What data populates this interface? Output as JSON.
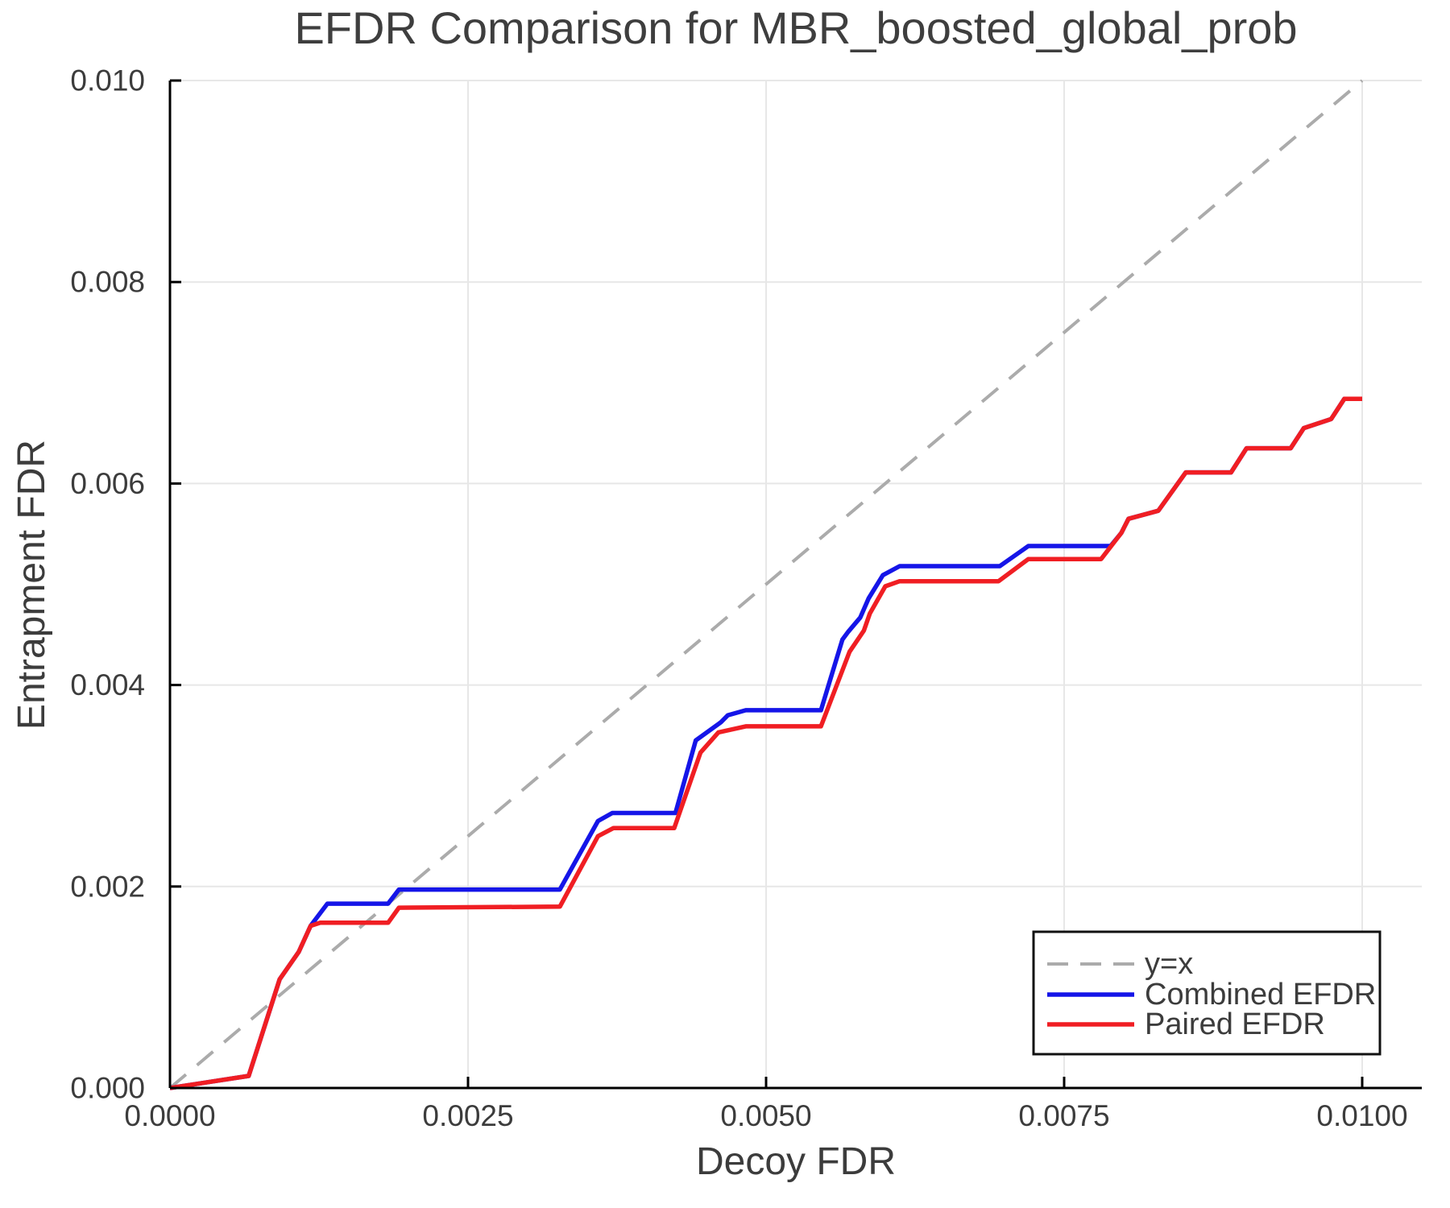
{
  "chart_data": {
    "type": "line",
    "title": "EFDR Comparison for MBR_boosted_global_prob",
    "xlabel": "Decoy FDR",
    "ylabel": "Entrapment FDR",
    "xlim": [
      0,
      0.0105
    ],
    "ylim": [
      0,
      0.01
    ],
    "grid": true,
    "legend_position": "bottom-right",
    "x_ticks": [
      {
        "value": 0.0,
        "label": "0.0000"
      },
      {
        "value": 0.0025,
        "label": "0.0025"
      },
      {
        "value": 0.005,
        "label": "0.0050"
      },
      {
        "value": 0.0075,
        "label": "0.0075"
      },
      {
        "value": 0.01,
        "label": "0.0100"
      }
    ],
    "y_ticks": [
      {
        "value": 0.0,
        "label": "0.000"
      },
      {
        "value": 0.002,
        "label": "0.002"
      },
      {
        "value": 0.004,
        "label": "0.004"
      },
      {
        "value": 0.006,
        "label": "0.006"
      },
      {
        "value": 0.008,
        "label": "0.008"
      },
      {
        "value": 0.01,
        "label": "0.010"
      }
    ],
    "series": [
      {
        "name": "y=x",
        "data_name": "y-equals-x-line",
        "color": "#ababab",
        "style": "dashed",
        "width": 4,
        "points": [
          [
            0.0,
            0.0
          ],
          [
            0.01,
            0.01
          ]
        ]
      },
      {
        "name": "Combined EFDR",
        "data_name": "combined-efdr-line",
        "color": "#1515e8",
        "style": "solid",
        "width": 5.5,
        "points": [
          [
            0.0,
            0.0
          ],
          [
            0.00066,
            0.00012
          ],
          [
            0.00092,
            0.00108
          ],
          [
            0.00108,
            0.00135
          ],
          [
            0.00118,
            0.00161
          ],
          [
            0.00132,
            0.00183
          ],
          [
            0.00183,
            0.00183
          ],
          [
            0.00192,
            0.00197
          ],
          [
            0.00327,
            0.00197
          ],
          [
            0.00359,
            0.00265
          ],
          [
            0.00371,
            0.00273
          ],
          [
            0.00424,
            0.00273
          ],
          [
            0.00441,
            0.00345
          ],
          [
            0.00462,
            0.00363
          ],
          [
            0.00468,
            0.0037
          ],
          [
            0.00483,
            0.00375
          ],
          [
            0.00546,
            0.00375
          ],
          [
            0.00564,
            0.00445
          ],
          [
            0.00569,
            0.00453
          ],
          [
            0.00579,
            0.00467
          ],
          [
            0.00586,
            0.00486
          ],
          [
            0.00598,
            0.00509
          ],
          [
            0.00612,
            0.00518
          ],
          [
            0.00696,
            0.00518
          ],
          [
            0.0072,
            0.00538
          ],
          [
            0.00789,
            0.00538
          ],
          [
            0.00798,
            0.00551
          ],
          [
            0.00804,
            0.00565
          ],
          [
            0.00829,
            0.00573
          ],
          [
            0.00852,
            0.00611
          ],
          [
            0.0089,
            0.00611
          ],
          [
            0.00903,
            0.00635
          ],
          [
            0.0094,
            0.00635
          ],
          [
            0.00951,
            0.00655
          ],
          [
            0.00974,
            0.00664
          ],
          [
            0.00985,
            0.00684
          ],
          [
            0.01,
            0.00684
          ]
        ]
      },
      {
        "name": "Paired EFDR",
        "data_name": "paired-efdr-line",
        "color": "#f01e23",
        "style": "solid",
        "width": 5.5,
        "points": [
          [
            0.0,
            0.0
          ],
          [
            0.00066,
            0.00012
          ],
          [
            0.00092,
            0.00108
          ],
          [
            0.00108,
            0.00135
          ],
          [
            0.00118,
            0.00161
          ],
          [
            0.00126,
            0.00164
          ],
          [
            0.00183,
            0.00164
          ],
          [
            0.00192,
            0.00179
          ],
          [
            0.00327,
            0.0018
          ],
          [
            0.00359,
            0.0025
          ],
          [
            0.00372,
            0.00258
          ],
          [
            0.00423,
            0.00258
          ],
          [
            0.00445,
            0.00333
          ],
          [
            0.0046,
            0.00353
          ],
          [
            0.00483,
            0.00359
          ],
          [
            0.00546,
            0.00359
          ],
          [
            0.0057,
            0.00433
          ],
          [
            0.00582,
            0.00454
          ],
          [
            0.00587,
            0.00471
          ],
          [
            0.006,
            0.00498
          ],
          [
            0.00612,
            0.00503
          ],
          [
            0.00695,
            0.00503
          ],
          [
            0.0072,
            0.00525
          ],
          [
            0.00781,
            0.00525
          ],
          [
            0.00798,
            0.00551
          ],
          [
            0.00804,
            0.00565
          ],
          [
            0.00829,
            0.00573
          ],
          [
            0.00852,
            0.00611
          ],
          [
            0.0089,
            0.00611
          ],
          [
            0.00903,
            0.00635
          ],
          [
            0.0094,
            0.00635
          ],
          [
            0.00951,
            0.00655
          ],
          [
            0.00974,
            0.00664
          ],
          [
            0.00985,
            0.00684
          ],
          [
            0.01,
            0.00684
          ]
        ]
      }
    ],
    "legend": [
      {
        "label": "y=x"
      },
      {
        "label": "Combined EFDR"
      },
      {
        "label": "Paired EFDR"
      }
    ]
  }
}
